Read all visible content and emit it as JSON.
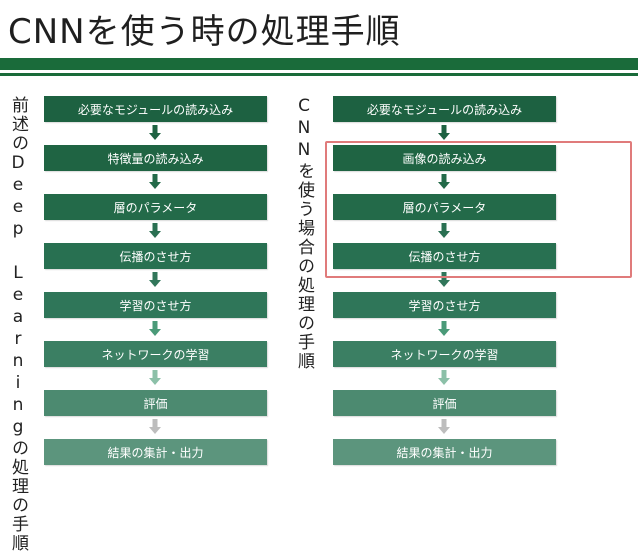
{
  "title": "CNNを使う時の処理手順",
  "left": {
    "label": "前述のDeep Learningの処理の手順",
    "steps": [
      "必要なモジュールの読み込み",
      "特徴量の読み込み",
      "層のパラメータ",
      "伝播のさせ方",
      "学習のさせ方",
      "ネットワークの学習",
      "評価",
      "結果の集計・出力"
    ]
  },
  "right": {
    "label": "CNNを使う場合の処理の手順",
    "steps": [
      "必要なモジュールの読み込み",
      "画像の読み込み",
      "層のパラメータ",
      "伝播のさせ方",
      "学習のさせ方",
      "ネットワークの学習",
      "評価",
      "結果の集計・出力"
    ]
  },
  "colors": {
    "accent": "#1a6b3a",
    "highlight": "#e07b7b",
    "box_shades": [
      "#1d6141",
      "#1f6443",
      "#236a49",
      "#287051",
      "#2f7659",
      "#3b7f63",
      "#4c8a70",
      "#5c957d"
    ],
    "arrow_shades": [
      "#1d6141",
      "#236a49",
      "#2a7052",
      "#31765a",
      "#4a9a78",
      "#8cc0a8",
      "#bdbdbd"
    ]
  }
}
